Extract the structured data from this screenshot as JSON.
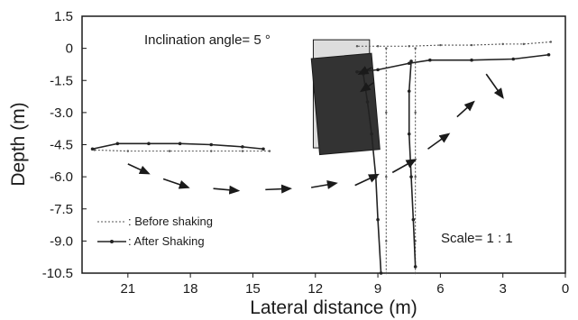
{
  "chart_data": {
    "type": "line",
    "title": "",
    "xlabel": "Lateral distance (m)",
    "ylabel": "Depth (m)",
    "xlim": [
      23.2,
      0
    ],
    "ylim": [
      -10.5,
      1.5
    ],
    "xticks": [
      {
        "value": 21,
        "label": "21"
      },
      {
        "value": 18,
        "label": "18"
      },
      {
        "value": 15,
        "label": "15"
      },
      {
        "value": 12,
        "label": "12"
      },
      {
        "value": 9,
        "label": "9"
      },
      {
        "value": 6,
        "label": "6"
      },
      {
        "value": 3,
        "label": "3"
      },
      {
        "value": 0,
        "label": "0"
      }
    ],
    "yticks": [
      {
        "value": 1.5,
        "label": "1.5"
      },
      {
        "value": 0,
        "label": "0"
      },
      {
        "value": -1.5,
        "label": "-1.5"
      },
      {
        "value": -3.0,
        "label": "-3.0"
      },
      {
        "value": -4.5,
        "label": "-4.5"
      },
      {
        "value": -6.0,
        "label": "-6.0"
      },
      {
        "value": -7.5,
        "label": "-7.5"
      },
      {
        "value": -9.0,
        "label": "-9.0"
      },
      {
        "value": -10.5,
        "label": "-10.5"
      }
    ],
    "grid": false,
    "legend_position": "bottom-left",
    "series": [
      {
        "name": ": Before shaking",
        "style": "dotted",
        "color": "#555555",
        "paths": [
          [
            [
              0.7,
              0.3
            ],
            [
              2.0,
              0.2
            ],
            [
              3.0,
              0.2
            ],
            [
              4.5,
              0.15
            ],
            [
              6.0,
              0.15
            ],
            [
              7.5,
              0.1
            ],
            [
              9.0,
              0.1
            ],
            [
              10.0,
              0.1
            ]
          ],
          [
            [
              7.2,
              0.0
            ],
            [
              7.2,
              -3.0
            ],
            [
              7.2,
              -6.0
            ],
            [
              7.2,
              -9.0
            ],
            [
              7.2,
              -10.5
            ]
          ],
          [
            [
              8.6,
              0.0
            ],
            [
              8.6,
              -3.0
            ],
            [
              8.6,
              -6.0
            ],
            [
              8.6,
              -9.0
            ],
            [
              8.6,
              -10.5
            ]
          ],
          [
            [
              22.6,
              -4.75
            ],
            [
              21.0,
              -4.8
            ],
            [
              19.0,
              -4.8
            ],
            [
              17.0,
              -4.8
            ],
            [
              15.5,
              -4.8
            ],
            [
              14.2,
              -4.8
            ]
          ]
        ]
      },
      {
        "name": ": After Shaking",
        "style": "solid",
        "color": "#222222",
        "paths": [
          [
            [
              0.8,
              -0.3
            ],
            [
              2.5,
              -0.5
            ],
            [
              4.5,
              -0.55
            ],
            [
              6.5,
              -0.55
            ],
            [
              7.5,
              -0.7
            ],
            [
              9.0,
              -1.0
            ],
            [
              10.0,
              -1.1
            ]
          ],
          [
            [
              7.4,
              -0.6
            ],
            [
              7.5,
              -2.0
            ],
            [
              7.5,
              -4.0
            ],
            [
              7.4,
              -6.0
            ],
            [
              7.3,
              -8.0
            ],
            [
              7.2,
              -10.2
            ]
          ],
          [
            [
              9.7,
              -1.2
            ],
            [
              9.5,
              -2.5
            ],
            [
              9.3,
              -4.0
            ],
            [
              9.1,
              -6.0
            ],
            [
              9.0,
              -8.0
            ],
            [
              8.85,
              -10.5
            ]
          ],
          [
            [
              22.7,
              -4.7
            ],
            [
              21.5,
              -4.45
            ],
            [
              20.0,
              -4.45
            ],
            [
              18.5,
              -4.45
            ],
            [
              17.0,
              -4.5
            ],
            [
              15.5,
              -4.6
            ],
            [
              14.5,
              -4.7
            ]
          ]
        ]
      }
    ],
    "flow_arrows": [
      [
        [
          3.8,
          -1.2
        ],
        [
          3.0,
          -2.3
        ]
      ],
      [
        [
          5.2,
          -3.2
        ],
        [
          4.4,
          -2.5
        ]
      ],
      [
        [
          6.6,
          -4.7
        ],
        [
          5.6,
          -4.0
        ]
      ],
      [
        [
          8.3,
          -5.8
        ],
        [
          7.2,
          -5.2
        ]
      ],
      [
        [
          10.1,
          -6.4
        ],
        [
          9.0,
          -5.9
        ]
      ],
      [
        [
          12.2,
          -6.5
        ],
        [
          11.0,
          -6.3
        ]
      ],
      [
        [
          14.4,
          -6.6
        ],
        [
          13.2,
          -6.55
        ]
      ],
      [
        [
          16.9,
          -6.55
        ],
        [
          15.7,
          -6.65
        ]
      ],
      [
        [
          19.3,
          -6.1
        ],
        [
          18.1,
          -6.5
        ]
      ],
      [
        [
          21.0,
          -5.4
        ],
        [
          20.0,
          -5.85
        ]
      ],
      [
        [
          9.2,
          -1.6
        ],
        [
          9.8,
          -2.0
        ]
      ],
      [
        [
          9.3,
          -0.9
        ],
        [
          9.9,
          -1.2
        ]
      ]
    ],
    "annotations": {
      "inclination": "Inclination angle= 5 °",
      "scale": "Scale= 1 : 1"
    },
    "wall_before_shaking": {
      "x_left": 12.1,
      "x_right": 9.4,
      "y_top": 0.4,
      "y_bottom": -4.65,
      "fill": "#dddddd"
    },
    "wall_after_shaking": {
      "x_left": 12.0,
      "x_right": 9.1,
      "y_top": -0.35,
      "y_bottom": -4.85,
      "fill": "#333333"
    }
  }
}
